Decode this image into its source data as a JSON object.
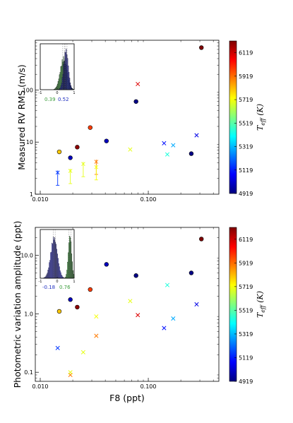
{
  "colors": {
    "green_hist": "#3a9c3a",
    "blue_hist": "#3a3ad0",
    "errorbar_green": "#7fe040",
    "errorbar_blue": "#2030d0"
  },
  "colormap": [
    "#00007f",
    "#0000ff",
    "#007fff",
    "#00ffff",
    "#7fff7f",
    "#ffff00",
    "#ff7f00",
    "#ff0000",
    "#7f0000"
  ],
  "chart_data": [
    {
      "type": "scatter",
      "xscale": "log",
      "yscale": "log",
      "xlim": [
        0.009,
        0.45
      ],
      "ylim": [
        1,
        900
      ],
      "xlabel": "",
      "ylabel": "Measured RV RMS (m/s)",
      "x_ticks": [
        {
          "v": 0.01,
          "label": "0.010"
        },
        {
          "v": 0.1,
          "label": "0.100"
        }
      ],
      "y_ticks": [
        {
          "v": 1,
          "label": "1"
        },
        {
          "v": 10,
          "label": "10"
        },
        {
          "v": 100,
          "label": "100"
        }
      ],
      "colorbar": {
        "label": "T_eff (K)",
        "range": [
          4919,
          6219
        ],
        "ticks": [
          "6119",
          "5919",
          "5719",
          "5519",
          "5319",
          "5119",
          "4919"
        ]
      },
      "points": [
        {
          "x": 0.015,
          "y": 6.5,
          "teff": 5800,
          "marker": "o"
        },
        {
          "x": 0.019,
          "y": 5.0,
          "teff": 5000,
          "marker": "o"
        },
        {
          "x": 0.022,
          "y": 8.0,
          "teff": 6200,
          "marker": "o"
        },
        {
          "x": 0.029,
          "y": 19,
          "teff": 5980,
          "marker": "o"
        },
        {
          "x": 0.041,
          "y": 10.5,
          "teff": 5000,
          "marker": "o"
        },
        {
          "x": 0.077,
          "y": 60,
          "teff": 4930,
          "marker": "o"
        },
        {
          "x": 0.25,
          "y": 6.0,
          "teff": 4930,
          "marker": "o"
        },
        {
          "x": 0.31,
          "y": 650,
          "teff": 6220,
          "marker": "o"
        },
        {
          "x": 0.068,
          "y": 7.2,
          "teff": 5700,
          "marker": "x"
        },
        {
          "x": 0.08,
          "y": 130,
          "teff": 6100,
          "marker": "x"
        },
        {
          "x": 0.14,
          "y": 9.5,
          "teff": 5100,
          "marker": "x"
        },
        {
          "x": 0.15,
          "y": 5.8,
          "teff": 5450,
          "marker": "x"
        },
        {
          "x": 0.17,
          "y": 8.7,
          "teff": 5300,
          "marker": "x"
        },
        {
          "x": 0.28,
          "y": 13.5,
          "teff": 5050,
          "marker": "x"
        }
      ],
      "upper_limits": [
        {
          "x": 0.0145,
          "y": 2.6,
          "teff": 5150
        },
        {
          "x": 0.019,
          "y": 2.8,
          "teff": 5700
        },
        {
          "x": 0.025,
          "y": 3.8,
          "teff": 5700
        },
        {
          "x": 0.033,
          "y": 4.2,
          "teff": 5900
        },
        {
          "x": 0.033,
          "y": 3.3,
          "teff": 5720
        }
      ],
      "inset": {
        "type": "histogram",
        "xlim": [
          -1,
          1
        ],
        "x_ticks": [
          "-1",
          "0",
          "1"
        ],
        "values": [
          {
            "text": "0.39",
            "color": "green"
          },
          {
            "text": "0.52",
            "color": "blue"
          }
        ],
        "green_median": 0.39,
        "blue_median": 0.52
      }
    },
    {
      "type": "scatter",
      "xscale": "log",
      "yscale": "log",
      "xlim": [
        0.009,
        0.45
      ],
      "ylim": [
        0.07,
        30
      ],
      "xlabel": "F8 (ppt)",
      "ylabel": "Photometric variation amplitude (ppt)",
      "x_ticks": [
        {
          "v": 0.01,
          "label": "0.010"
        },
        {
          "v": 0.1,
          "label": "0.100"
        }
      ],
      "y_ticks": [
        {
          "v": 0.1,
          "label": "0.1"
        },
        {
          "v": 1,
          "label": "1.0"
        },
        {
          "v": 10,
          "label": "10.0"
        }
      ],
      "colorbar": {
        "label": "T_eff (K)",
        "range": [
          4919,
          6219
        ],
        "ticks": [
          "6119",
          "5919",
          "5719",
          "5519",
          "5319",
          "5119",
          "4919"
        ]
      },
      "points": [
        {
          "x": 0.015,
          "y": 1.1,
          "teff": 5800,
          "marker": "o"
        },
        {
          "x": 0.019,
          "y": 1.75,
          "teff": 5000,
          "marker": "o"
        },
        {
          "x": 0.022,
          "y": 1.3,
          "teff": 6200,
          "marker": "o"
        },
        {
          "x": 0.029,
          "y": 2.6,
          "teff": 5980,
          "marker": "o"
        },
        {
          "x": 0.041,
          "y": 7.0,
          "teff": 5000,
          "marker": "o"
        },
        {
          "x": 0.077,
          "y": 4.5,
          "teff": 4930,
          "marker": "o"
        },
        {
          "x": 0.25,
          "y": 5.0,
          "teff": 4930,
          "marker": "o"
        },
        {
          "x": 0.31,
          "y": 19,
          "teff": 6220,
          "marker": "o"
        },
        {
          "x": 0.0145,
          "y": 0.26,
          "teff": 5150,
          "marker": "x"
        },
        {
          "x": 0.019,
          "y": 0.09,
          "teff": 5900,
          "marker": "x"
        },
        {
          "x": 0.019,
          "y": 0.1,
          "teff": 5700,
          "marker": "x"
        },
        {
          "x": 0.025,
          "y": 0.22,
          "teff": 5700,
          "marker": "x"
        },
        {
          "x": 0.033,
          "y": 0.9,
          "teff": 5720,
          "marker": "x"
        },
        {
          "x": 0.033,
          "y": 0.42,
          "teff": 5900,
          "marker": "x"
        },
        {
          "x": 0.068,
          "y": 1.65,
          "teff": 5700,
          "marker": "x"
        },
        {
          "x": 0.08,
          "y": 0.95,
          "teff": 6100,
          "marker": "x"
        },
        {
          "x": 0.14,
          "y": 0.57,
          "teff": 5100,
          "marker": "x"
        },
        {
          "x": 0.15,
          "y": 3.1,
          "teff": 5450,
          "marker": "x"
        },
        {
          "x": 0.17,
          "y": 0.83,
          "teff": 5300,
          "marker": "x"
        },
        {
          "x": 0.28,
          "y": 1.45,
          "teff": 5050,
          "marker": "x"
        }
      ],
      "inset": {
        "type": "histogram",
        "xlim": [
          -1,
          1
        ],
        "x_ticks": [
          "-1",
          "0",
          "1"
        ],
        "values": [
          {
            "text": "-0.18",
            "color": "blue"
          },
          {
            "text": "0.76",
            "color": "green"
          }
        ],
        "green_median": 0.76,
        "blue_median": -0.18
      }
    }
  ]
}
